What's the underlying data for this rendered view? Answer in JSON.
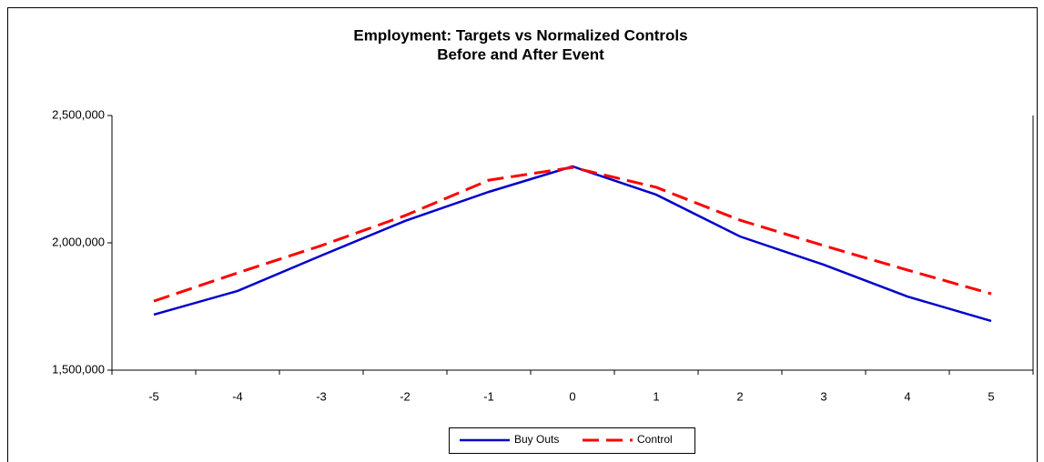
{
  "chart_data": {
    "type": "line",
    "title": "Employment: Targets vs Normalized Controls",
    "subtitle": "Before and After Event",
    "categories": [
      "-5",
      "-4",
      "-3",
      "-2",
      "-1",
      "0",
      "1",
      "2",
      "3",
      "4",
      "5"
    ],
    "series": [
      {
        "name": "Buy Outs",
        "color": "#0000cc",
        "dashed": false,
        "values": [
          1718000,
          1811000,
          1950000,
          2086000,
          2200000,
          2300000,
          2189000,
          2025000,
          1914000,
          1789000,
          1693000
        ]
      },
      {
        "name": "Control",
        "color": "#ff0000",
        "dashed": true,
        "values": [
          1771000,
          1882000,
          1989000,
          2107000,
          2246000,
          2296000,
          2218000,
          2089000,
          1989000,
          1893000,
          1800000
        ]
      }
    ],
    "ylim": [
      1500000,
      2500000
    ],
    "yticks": [
      {
        "value": 1500000,
        "label": "1,500,000"
      },
      {
        "value": 2000000,
        "label": "2,000,000"
      },
      {
        "value": 2500000,
        "label": "2,500,000"
      }
    ],
    "legend": "bottom"
  }
}
